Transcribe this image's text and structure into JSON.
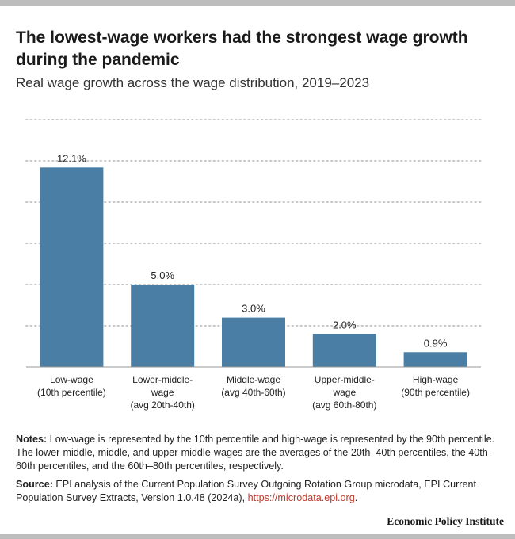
{
  "title": "The lowest-wage workers had the strongest wage growth during the pandemic",
  "subtitle": "Real wage growth across the wage distribution, 2019–2023",
  "chart_data": {
    "type": "bar",
    "categories": [
      [
        "Low-wage",
        "(10th percentile)"
      ],
      [
        "Lower-middle-",
        "wage",
        "(avg 20th-40th)"
      ],
      [
        "Middle-wage",
        "(avg 40th-60th)"
      ],
      [
        "Upper-middle-",
        "wage",
        "(avg 60th-80th)"
      ],
      [
        "High-wage",
        "(90th percentile)"
      ]
    ],
    "values": [
      12.1,
      5.0,
      3.0,
      2.0,
      0.9
    ],
    "value_labels": [
      "12.1%",
      "5.0%",
      "3.0%",
      "2.0%",
      "0.9%"
    ],
    "ylim": [
      0,
      15
    ],
    "gridlines": [
      2.5,
      5,
      7.5,
      10,
      12.5,
      15
    ],
    "grid": true,
    "bar_color": "#4a7ea5",
    "gridline_color": "#c8c8c8"
  },
  "notes": {
    "label": "Notes:",
    "text": " Low-wage is represented by the 10th percentile and high-wage is represented by the 90th percentile. The lower-middle, middle, and upper-middle-wages are the averages of the 20th–40th percentiles, the 40th–60th percentiles, and the 60th–80th percentiles, respectively."
  },
  "source": {
    "label": "Source:",
    "text": " EPI analysis of the Current Population Survey Outgoing Rotation Group microdata, EPI Current Population Survey Extracts, Version 1.0.48 (2024a), ",
    "link": "https://microdata.epi.org",
    "end": "."
  },
  "brand": "Economic Policy Institute"
}
